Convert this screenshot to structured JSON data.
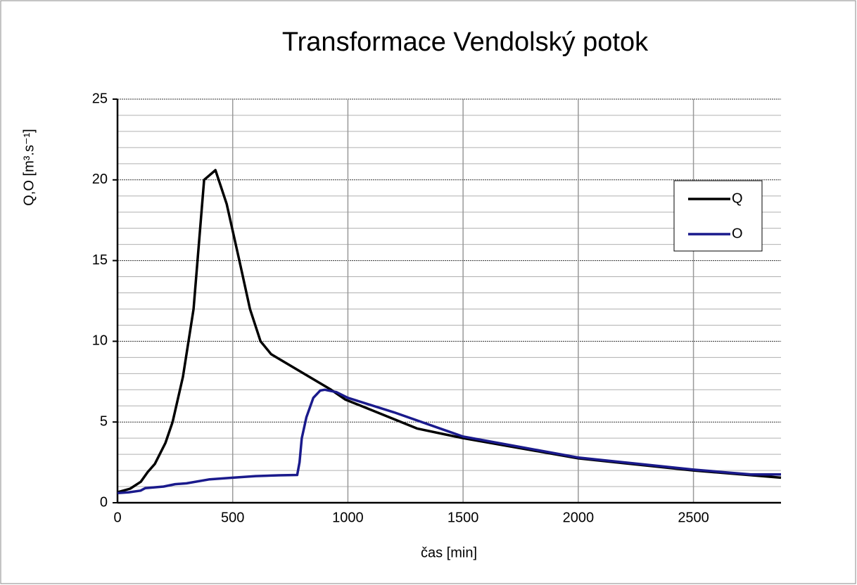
{
  "chart_data": {
    "type": "line",
    "title": "Transformace Vendolský potok",
    "x_label": "čas [min]",
    "y_label": "Q,O [m³.s⁻¹]",
    "xlim": [
      0,
      2880
    ],
    "xticks": [
      0,
      500,
      1000,
      1500,
      2000,
      2500
    ],
    "ylim": [
      0,
      25
    ],
    "yticks": [
      0,
      5,
      10,
      15,
      20,
      25
    ],
    "minor_yticks": [
      1,
      2,
      3,
      4,
      6,
      7,
      8,
      9,
      11,
      12,
      13,
      14,
      16,
      17,
      18,
      19,
      21,
      22,
      23,
      24
    ],
    "grid": true,
    "legend": "right",
    "series": [
      {
        "name": "Q",
        "color": "#000000",
        "x": [
          0,
          55,
          101,
          131,
          162,
          208,
          239,
          284,
          330,
          376,
          425,
          474,
          529,
          575,
          621,
          667,
          927,
          988,
          1300,
          1500,
          2000,
          2500,
          2880
        ],
        "values": [
          0.65,
          0.87,
          1.3,
          1.9,
          2.4,
          3.7,
          5,
          7.8,
          12,
          20,
          20.6,
          18.5,
          15,
          12,
          10,
          9.2,
          7,
          6.4,
          4.6,
          4.0,
          2.75,
          2.0,
          1.55
        ]
      },
      {
        "name": "O",
        "color": "#1a1a8c",
        "x": [
          0,
          50,
          100,
          120,
          200,
          250,
          300,
          400,
          500,
          600,
          700,
          780,
          790,
          800,
          820,
          850,
          880,
          900,
          950,
          1000,
          1200,
          1500,
          2000,
          2500,
          2750,
          2880
        ],
        "values": [
          0.6,
          0.65,
          0.75,
          0.9,
          1.0,
          1.15,
          1.2,
          1.45,
          1.55,
          1.65,
          1.7,
          1.72,
          2.5,
          4,
          5.3,
          6.5,
          6.95,
          7.0,
          6.85,
          6.5,
          5.6,
          4.1,
          2.8,
          2.05,
          1.75,
          1.75
        ]
      }
    ]
  }
}
